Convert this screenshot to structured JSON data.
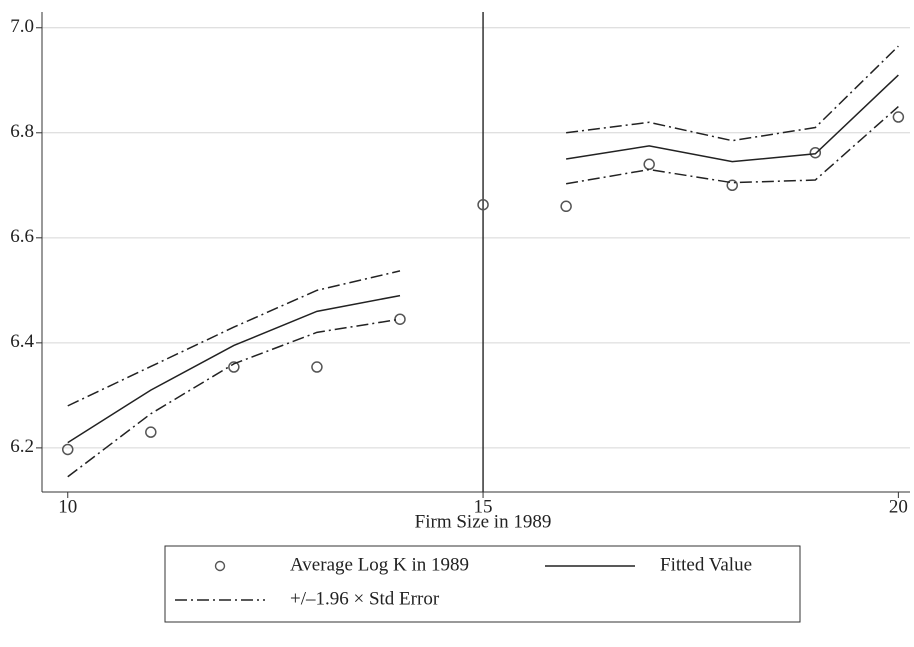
{
  "chart_data": {
    "type": "line",
    "x_label": "Firm Size in 1989",
    "x": [
      10,
      11,
      12,
      13,
      14,
      15,
      16,
      17,
      18,
      19,
      20
    ],
    "xlim": [
      9.69,
      20.14
    ],
    "ylim": [
      6.116,
      7.03
    ],
    "xticks": [
      10,
      15,
      20
    ],
    "yticks": [
      {
        "value": 7.0,
        "label": "7.0"
      },
      6.8,
      6.6,
      6.4,
      6.2
    ],
    "grid": true,
    "vline": 15,
    "series": [
      {
        "name": "Average Log K in 1989",
        "type": "scatter",
        "color": "#555555",
        "values": [
          6.197,
          6.23,
          6.354,
          6.354,
          6.445,
          6.663,
          6.66,
          6.74,
          6.7,
          6.762,
          6.83
        ]
      },
      {
        "name": "Fitted Value",
        "type": "line",
        "color": "#222222",
        "values": [
          6.21,
          6.31,
          6.395,
          6.46,
          6.49,
          null,
          6.75,
          6.775,
          6.745,
          6.76,
          6.91
        ]
      },
      {
        "name": "+/–1.96 × Std Error",
        "type": "dashdot",
        "color": "#222222",
        "upper": [
          6.28,
          6.355,
          6.43,
          6.5,
          6.537,
          null,
          6.8,
          6.82,
          6.785,
          6.81,
          6.965
        ],
        "lower": [
          6.145,
          6.265,
          6.36,
          6.42,
          6.445,
          null,
          6.703,
          6.73,
          6.705,
          6.71,
          6.85
        ]
      }
    ]
  }
}
